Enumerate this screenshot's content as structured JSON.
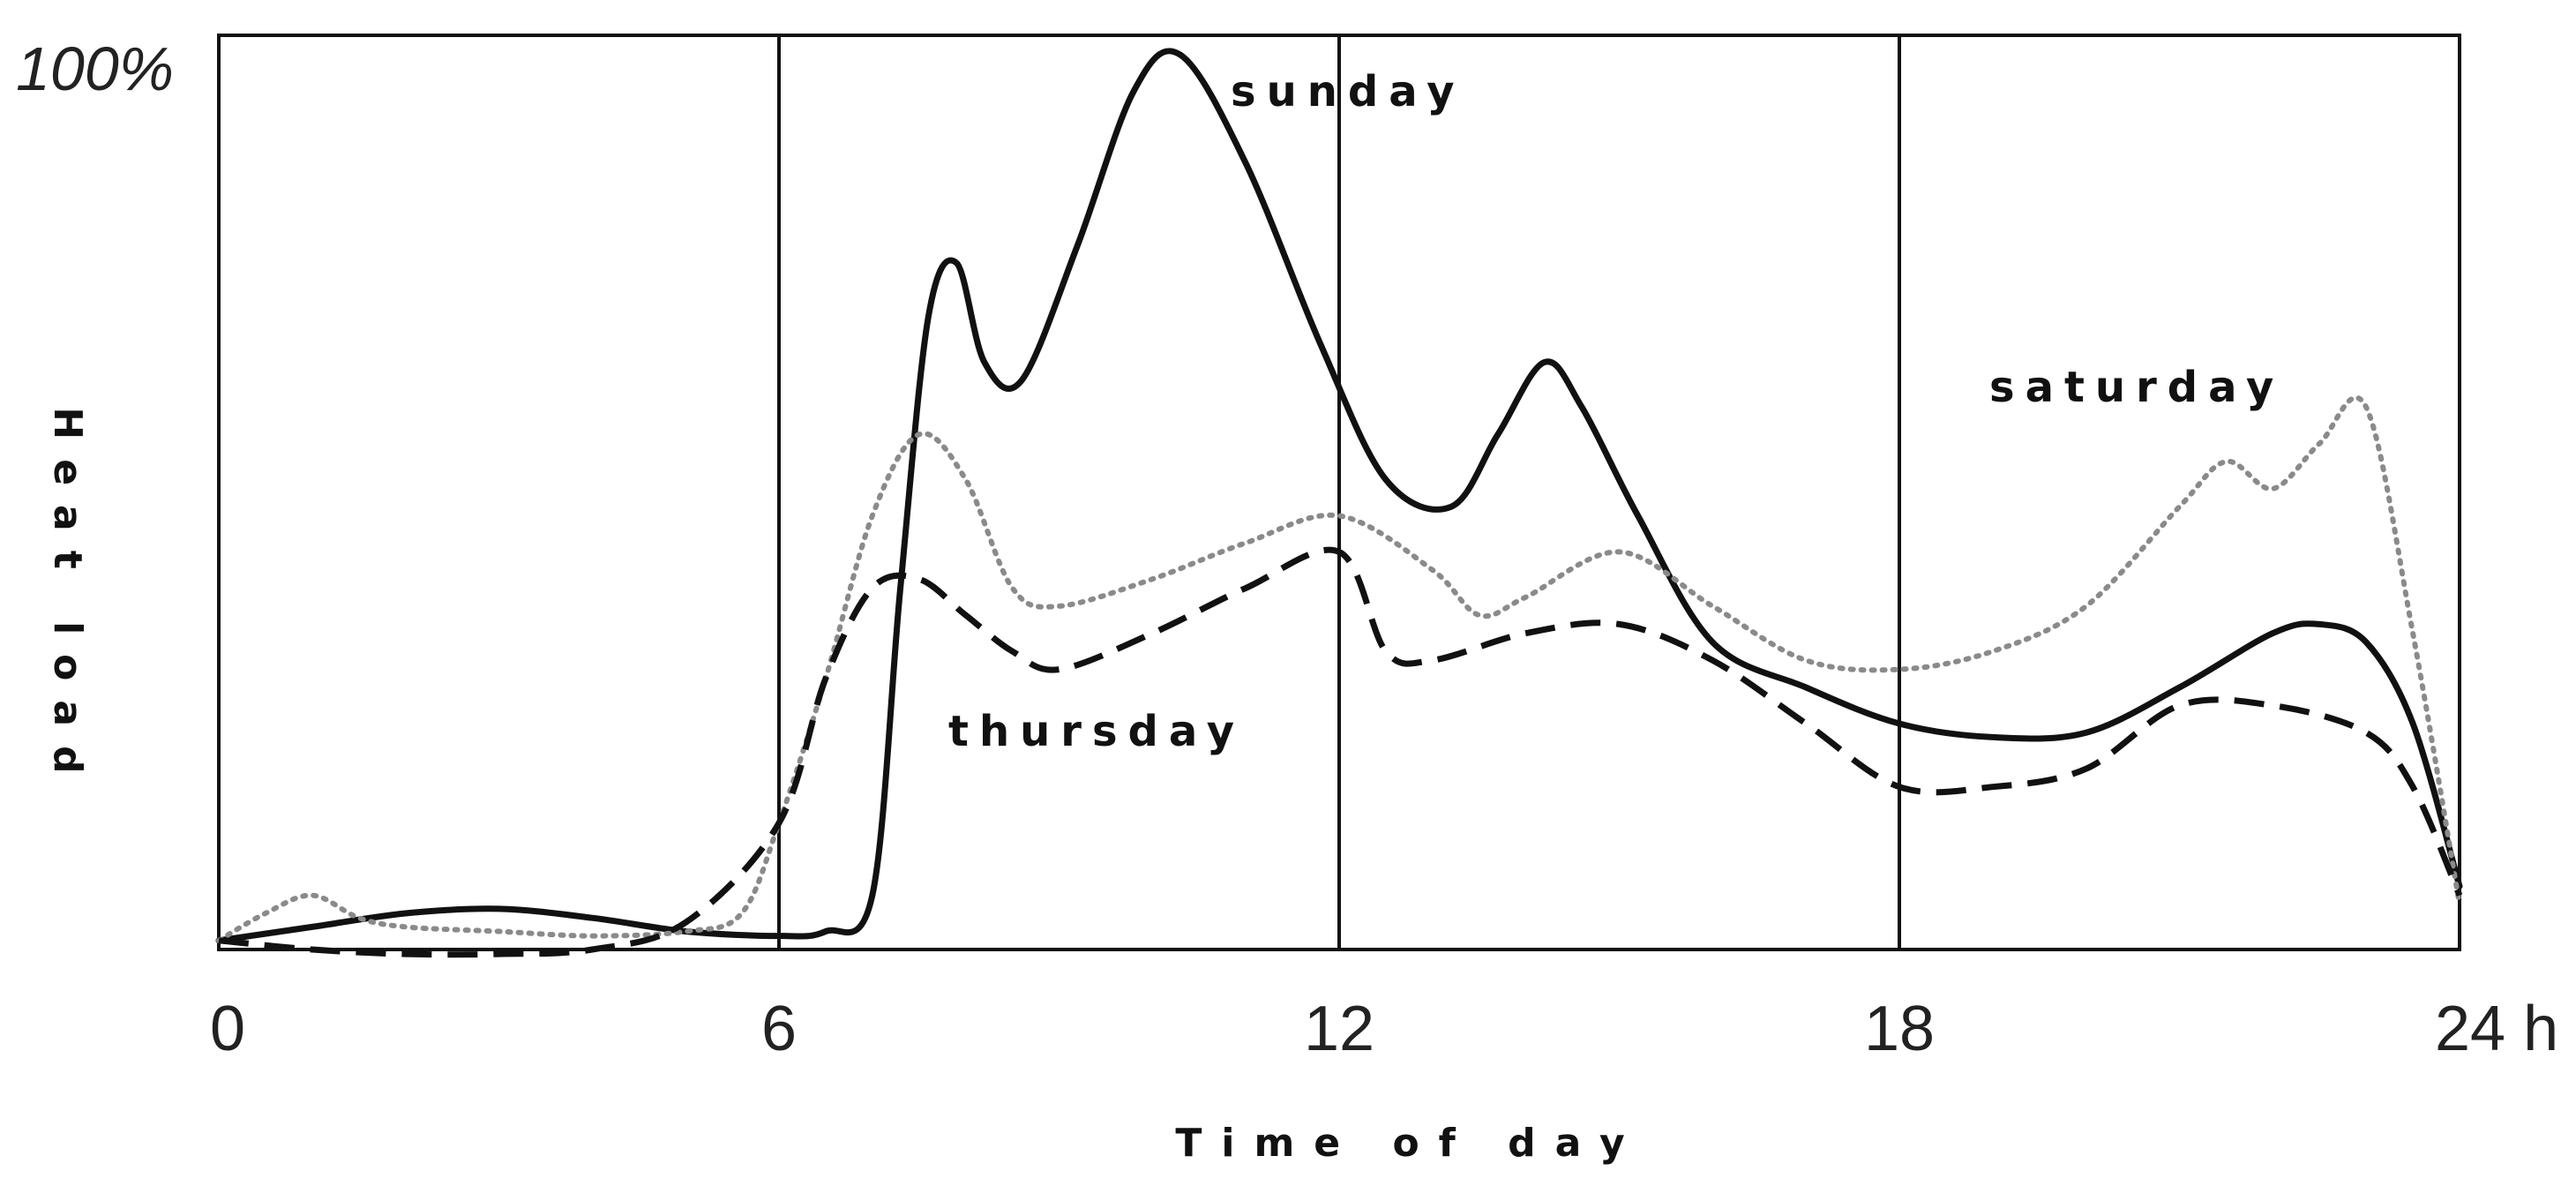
{
  "chart_data": {
    "type": "line",
    "title": "",
    "xlabel": "Time of day",
    "ylabel": "Heat load",
    "xlim": [
      0,
      24
    ],
    "ylim": [
      0,
      100
    ],
    "x_ticks": [
      "0",
      "6",
      "12",
      "18",
      "24 h"
    ],
    "x_tick_values": [
      0,
      6,
      12,
      18,
      24
    ],
    "y_max_label": "100%",
    "vertical_gridlines_at": [
      6,
      12,
      18
    ],
    "series": [
      {
        "name": "sunday",
        "style": "solid",
        "color": "#111111",
        "x": [
          0,
          1,
          2,
          3,
          4,
          5,
          6,
          6.5,
          7,
          7.3,
          7.6,
          7.9,
          8.2,
          8.6,
          9.2,
          9.8,
          10.3,
          11,
          11.8,
          12.5,
          13.2,
          13.7,
          14.2,
          14.6,
          15.2,
          16,
          17,
          18,
          19,
          20,
          21,
          22,
          22.5,
          23,
          23.5,
          24
        ],
        "y": [
          1,
          2.5,
          4,
          4.5,
          3.5,
          2,
          1.5,
          2,
          6,
          40,
          70,
          76,
          65,
          63,
          78,
          95,
          99,
          87,
          67,
          52,
          49,
          57,
          65,
          60,
          48,
          34,
          29,
          25,
          23.5,
          24,
          29,
          35,
          36,
          34,
          25,
          7
        ]
      },
      {
        "name": "saturday",
        "style": "dotted",
        "color": "#8a8a8a",
        "x": [
          0,
          0.5,
          1,
          1.5,
          2,
          3,
          4,
          5,
          5.6,
          6,
          6.5,
          7,
          7.5,
          8,
          8.5,
          9,
          10,
          11,
          12,
          13,
          13.5,
          14,
          15,
          16,
          17,
          18,
          19,
          20,
          21,
          21.5,
          22,
          22.5,
          23,
          23.5,
          24
        ],
        "y": [
          1,
          4,
          6,
          3.5,
          2.5,
          2,
          1.5,
          2,
          4,
          14,
          30,
          48,
          57,
          52,
          40,
          38,
          41,
          45,
          48,
          42,
          37,
          39,
          44,
          38,
          32,
          31,
          33,
          38,
          49,
          54,
          51,
          56,
          60,
          35,
          5
        ]
      },
      {
        "name": "thursday",
        "style": "dashed",
        "color": "#111111",
        "x": [
          0,
          1,
          2,
          3,
          4,
          5,
          6,
          6.5,
          7,
          7.5,
          8,
          8.5,
          9,
          10,
          11,
          12,
          12.5,
          13,
          14,
          15,
          16,
          17,
          18,
          19,
          20,
          21,
          22,
          23,
          23.5,
          24
        ],
        "y": [
          1,
          0,
          -0.5,
          -0.5,
          0,
          3,
          14,
          30,
          40,
          41,
          37,
          33,
          31,
          35,
          40,
          44,
          33,
          32,
          35,
          36,
          32,
          25,
          18,
          18,
          20,
          27,
          27,
          24,
          18,
          6
        ]
      }
    ],
    "annotations": [
      "sunday",
      "saturday",
      "thursday"
    ]
  }
}
